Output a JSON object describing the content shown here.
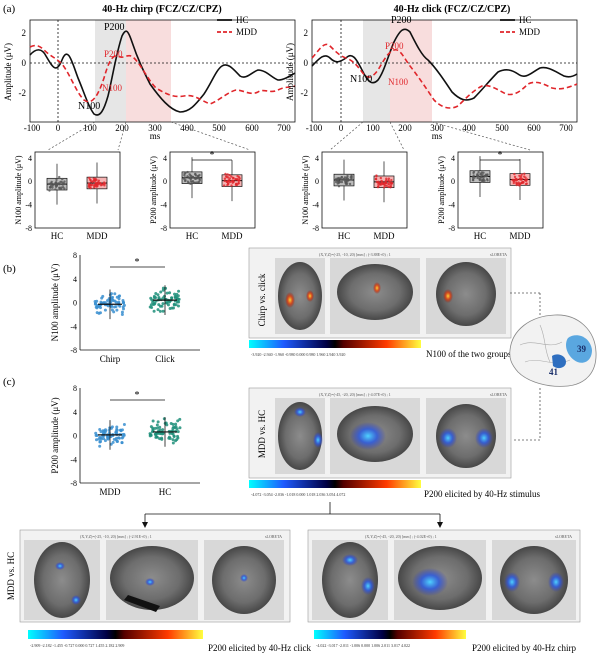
{
  "panel_labels": {
    "a": "(a)",
    "b": "(b)",
    "c": "(c)"
  },
  "legend": {
    "hc": "HC",
    "mdd": "MDD"
  },
  "colors": {
    "hc": "#111111",
    "mdd": "#e0262b",
    "shade_gray": "#dcdcdc",
    "shade_red": "#f4c6c6",
    "blue": "#3a8fd0",
    "teal": "#1f8f7a"
  },
  "erp_common": {
    "ylabel": "Amplitude (μV)",
    "xunit": "ms",
    "yticks": [
      "2",
      "0",
      "-2"
    ],
    "xticks": [
      "-100",
      "0",
      "100",
      "200",
      "300",
      "400",
      "500",
      "600",
      "700"
    ]
  },
  "erp_chirp": {
    "title": "40-Hz chirp (FCZ/CZ/CPZ)",
    "labels": {
      "p200_hc": "P200",
      "p200_mdd": "P200",
      "n100_mdd": "N100",
      "n100_hc": "N100"
    }
  },
  "erp_click": {
    "title": "40-Hz click (FCZ/CZ/CPZ)",
    "labels": {
      "p200_hc": "P200",
      "p200_mdd": "P200",
      "n100_mdd": "N100",
      "n100_hc": "N100"
    }
  },
  "box": {
    "n100_ylabel": "N100 amplitude (μV)",
    "p200_ylabel": "P200 amplitude (μV)",
    "yticks": [
      "4",
      "2",
      "0",
      "-2",
      "-4",
      "-6",
      "-8"
    ],
    "groups": [
      "HC",
      "MDD"
    ],
    "sig": "*"
  },
  "scatter_b": {
    "ylabel": "N100 amplitude (μV)",
    "yticks": [
      "8",
      "6",
      "4",
      "2",
      "0",
      "-2",
      "-4",
      "-6",
      "-8"
    ],
    "groups": [
      "Chirp",
      "Click"
    ],
    "sig": "*"
  },
  "scatter_c": {
    "ylabel": "P200 amplitude (μV)",
    "yticks": [
      "8",
      "6",
      "4",
      "2",
      "0",
      "-2",
      "-4",
      "-6",
      "-8"
    ],
    "groups": [
      "MDD",
      "HC"
    ],
    "sig": "*"
  },
  "brain_b": {
    "side_label": "Chirp vs. click",
    "caption": "N100 of the two groups",
    "colorbar_ticks": "-3.920  -2.940  -1.960  -0.980  0.000  0.980  1.960  2.940  3.920",
    "header": "(X,Y,Z)=(-25, -10, 20) [mm] ; (-3.88E+0) ; 1",
    "logo": "sLORETA"
  },
  "brain_c": {
    "side_label": "MDD vs. HC",
    "caption": "P200 elicited by 40-Hz stimulus",
    "colorbar_ticks": "-4.072  -3.054  -2.036  -1.018  0.000  1.018  2.036  3.054  4.072",
    "header": "(X,Y,Z)=(-45, -20, 20) [mm] ; (-4.07E+0) ; 1",
    "logo": "sLORETA"
  },
  "brain_click": {
    "side_label": "MDD vs. HC",
    "caption": "P200 elicited by 40-Hz click",
    "colorbar_ticks": "-2.909  -2.182  -1.455  -0.727  0.000  0.727  1.455  2.182  2.909",
    "header": "(X,Y,Z)=(-25, -10, 20) [mm] ; (-2.91E+0) ; 1",
    "logo": "sLORETA"
  },
  "brain_chirp": {
    "caption": "P200 elicited by 40-Hz chirp",
    "colorbar_ticks": "-4.022  -3.017  -2.011  -1.006  0.000  1.006  2.011  3.017  4.022",
    "header": "(X,Y,Z)=(-45, -20, 20) [mm] ; (-4.02E+0) ; 1",
    "logo": "sLORETA"
  },
  "cortex": {
    "label1": "39",
    "label2": "41"
  }
}
